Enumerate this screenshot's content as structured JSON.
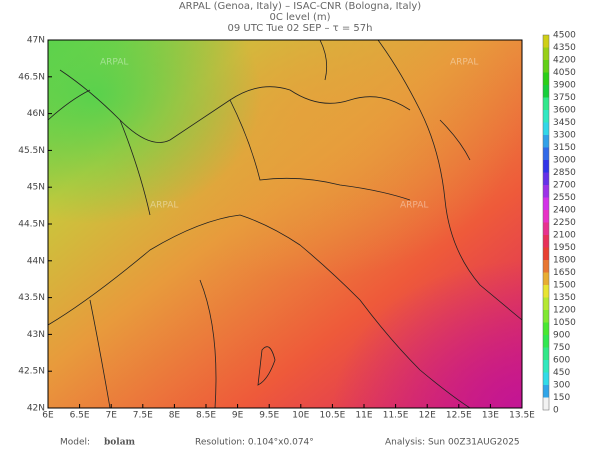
{
  "header": {
    "line1": "ARPAL (Genoa, Italy)  –  ISAC-CNR (Bologna, Italy)",
    "line2": "0C level (m)",
    "line3": "09 UTC Tue 02 SEP  –  τ = 57h"
  },
  "map": {
    "lat_ticks": [
      "47N",
      "46.5N",
      "46N",
      "45.5N",
      "45N",
      "44.5N",
      "44N",
      "43.5N",
      "43N",
      "42.5N",
      "42N"
    ],
    "lon_ticks": [
      "6E",
      "6.5E",
      "7E",
      "7.5E",
      "8E",
      "8.5E",
      "9E",
      "9.5E",
      "10E",
      "10.5E",
      "11E",
      "11.5E",
      "12E",
      "12.5E",
      "13E",
      "13.5E"
    ],
    "watermark": "ARPAL"
  },
  "colorbar": {
    "levels": [
      "4500",
      "4350",
      "4200",
      "4050",
      "3900",
      "3750",
      "3600",
      "3450",
      "3300",
      "3150",
      "3000",
      "2850",
      "2700",
      "2550",
      "2400",
      "2250",
      "2100",
      "1950",
      "1800",
      "1650",
      "1500",
      "1350",
      "1200",
      "1050",
      "900",
      "750",
      "600",
      "450",
      "300",
      "150",
      "0"
    ]
  },
  "footer": {
    "model_label": "Model:",
    "model": "bolam",
    "resolution": "Resolution: 0.104°x0.074°",
    "analysis": "Analysis: Sun 00Z31AUG2025"
  }
}
